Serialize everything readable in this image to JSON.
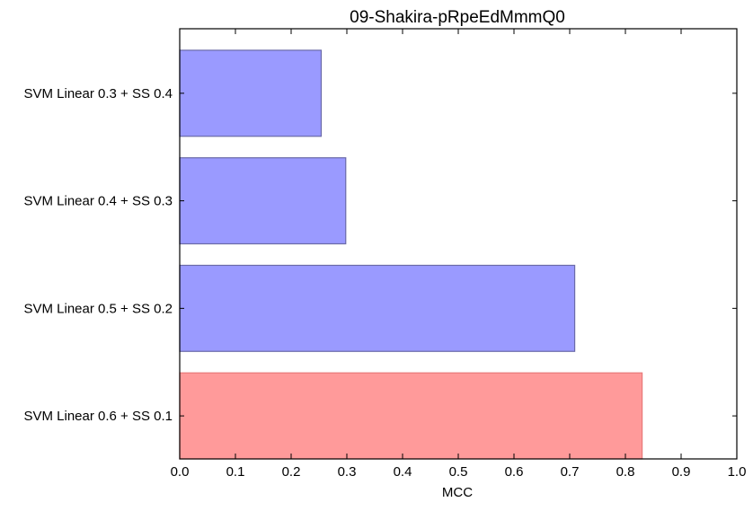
{
  "chart_data": {
    "type": "bar",
    "orientation": "horizontal",
    "title": "09-Shakira-pRpeEdMmmQ0",
    "xlabel": "MCC",
    "ylabel": "",
    "xlim": [
      0.0,
      1.0
    ],
    "x_ticks": [
      "0.0",
      "0.1",
      "0.2",
      "0.3",
      "0.4",
      "0.5",
      "0.6",
      "0.7",
      "0.8",
      "0.9",
      "1.0"
    ],
    "categories": [
      "SVM Linear 0.3 + SS 0.4",
      "SVM Linear 0.4 + SS 0.3",
      "SVM Linear 0.5 + SS 0.2",
      "SVM Linear 0.6 + SS 0.1"
    ],
    "values": [
      0.254,
      0.298,
      0.709,
      0.83
    ],
    "bar_colors": [
      "#9a9aff",
      "#9a9aff",
      "#9a9aff",
      "#ff9a9a"
    ],
    "bar_edge_colors": [
      "#6a6aa8",
      "#6a6aa8",
      "#6a6aa8",
      "#e87a7a"
    ],
    "highlighted_index": 3,
    "grid": false,
    "legend": "none"
  }
}
